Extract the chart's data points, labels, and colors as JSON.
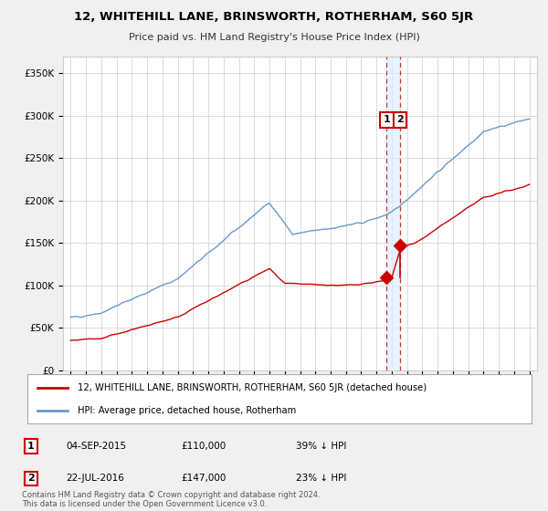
{
  "title": "12, WHITEHILL LANE, BRINSWORTH, ROTHERHAM, S60 5JR",
  "subtitle": "Price paid vs. HM Land Registry's House Price Index (HPI)",
  "legend_label_red": "12, WHITEHILL LANE, BRINSWORTH, ROTHERHAM, S60 5JR (detached house)",
  "legend_label_blue": "HPI: Average price, detached house, Rotherham",
  "annotation1_date": "04-SEP-2015",
  "annotation1_price": "£110,000",
  "annotation1_hpi": "39% ↓ HPI",
  "annotation1_year": 2015.67,
  "annotation1_value": 110000,
  "annotation2_date": "22-JUL-2016",
  "annotation2_price": "£147,000",
  "annotation2_hpi": "23% ↓ HPI",
  "annotation2_year": 2016.55,
  "annotation2_value": 147000,
  "footer": "Contains HM Land Registry data © Crown copyright and database right 2024.\nThis data is licensed under the Open Government Licence v3.0.",
  "ylim": [
    0,
    370000
  ],
  "yticks": [
    0,
    50000,
    100000,
    150000,
    200000,
    250000,
    300000,
    350000
  ],
  "ytick_labels": [
    "£0",
    "£50K",
    "£100K",
    "£150K",
    "£200K",
    "£250K",
    "£300K",
    "£350K"
  ],
  "background_color": "#f0f0f0",
  "plot_bg_color": "#ffffff",
  "red_color": "#cc0000",
  "blue_color": "#6699cc",
  "dashed_line_color": "#cc3333",
  "shade_color": "#ddeeff"
}
